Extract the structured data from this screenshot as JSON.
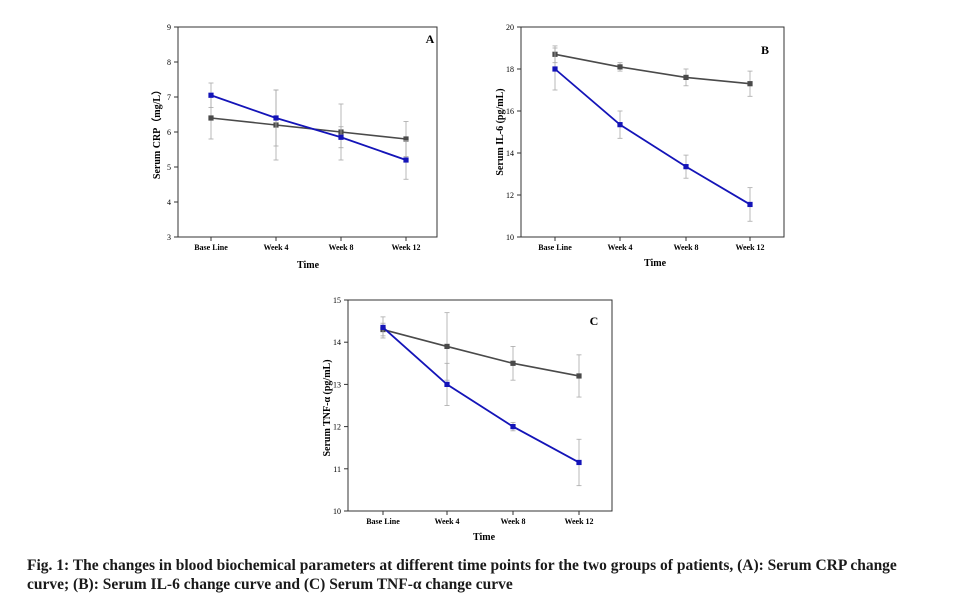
{
  "caption": "Fig. 1: The changes in blood biochemical parameters at different time points for the two groups of patients, (A): Serum CRP change curve; (B): Serum IL-6 change curve and (C) Serum TNF-α change curve",
  "colors": {
    "gray_series": "#4a4a4a",
    "blue_series": "#1414b8",
    "axis": "#333333",
    "error_bar": "#a9a9a9"
  },
  "chart_data": [
    {
      "panel": "A",
      "type": "line",
      "categories": [
        "Base Line",
        "Week 4",
        "Week 8",
        "Week 12"
      ],
      "xlabel": "Time",
      "ylabel": "Serum CRP（mg/L）",
      "ylim": [
        3,
        9
      ],
      "yticks": [
        3,
        4,
        5,
        6,
        7,
        8,
        9
      ],
      "grid": false,
      "series": [
        {
          "color": "gray",
          "marker": "square",
          "values": [
            6.4,
            6.2,
            6.0,
            5.8
          ],
          "errors": [
            0.6,
            1.0,
            0.8,
            0.5
          ]
        },
        {
          "color": "blue",
          "marker": "square",
          "values": [
            7.05,
            6.4,
            5.85,
            5.2
          ],
          "errors": [
            0.35,
            0.8,
            0.3,
            0.55
          ]
        }
      ]
    },
    {
      "panel": "B",
      "type": "line",
      "categories": [
        "Base Line",
        "Week 4",
        "Week 8",
        "Week 12"
      ],
      "xlabel": "Time",
      "ylabel": "Serum IL-6 (pg/mL)",
      "ylim": [
        10,
        20
      ],
      "yticks": [
        10,
        12,
        14,
        16,
        18,
        20
      ],
      "grid": false,
      "series": [
        {
          "color": "gray",
          "marker": "square",
          "values": [
            18.7,
            18.1,
            17.6,
            17.3
          ],
          "errors": [
            0.4,
            0.2,
            0.4,
            0.6
          ]
        },
        {
          "color": "blue",
          "marker": "square",
          "values": [
            18.0,
            15.35,
            13.35,
            11.55
          ],
          "errors": [
            1.0,
            0.65,
            0.55,
            0.8
          ]
        }
      ]
    },
    {
      "panel": "C",
      "type": "line",
      "categories": [
        "Base Line",
        "Week 4",
        "Week 8",
        "Week 12"
      ],
      "xlabel": "Time",
      "ylabel": "Serum TNF-α (pg/mL)",
      "ylim": [
        10,
        15
      ],
      "yticks": [
        10,
        11,
        12,
        13,
        14,
        15
      ],
      "grid": false,
      "series": [
        {
          "color": "gray",
          "marker": "square",
          "values": [
            14.3,
            13.9,
            13.5,
            13.2
          ],
          "errors": [
            0.15,
            0.8,
            0.4,
            0.5
          ]
        },
        {
          "color": "blue",
          "marker": "square",
          "values": [
            14.35,
            13.0,
            12.0,
            11.15
          ],
          "errors": [
            0.25,
            0.5,
            0.1,
            0.55
          ]
        }
      ]
    }
  ]
}
